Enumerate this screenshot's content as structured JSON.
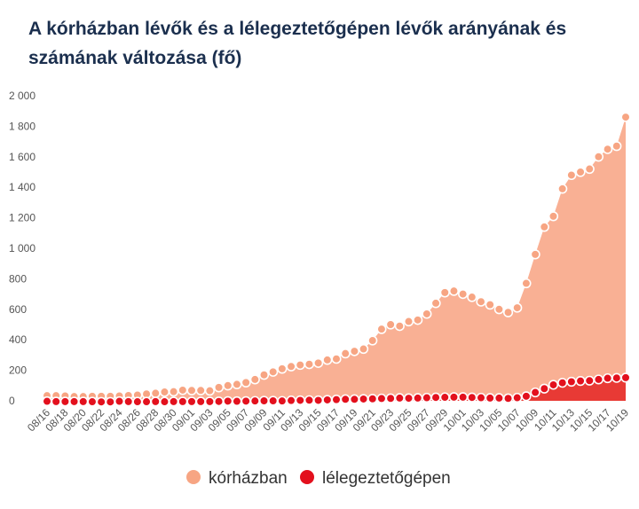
{
  "chart_data": {
    "type": "area",
    "title": "A kórházban lévők és a lélegeztetőgépen lévők arányának és számának változása (fő)",
    "xlabel": "",
    "ylabel": "",
    "ylim": [
      0,
      2000
    ],
    "yticks": [
      "0",
      "200",
      "400",
      "600",
      "800",
      "1 000",
      "1 200",
      "1 400",
      "1 600",
      "1 800",
      "2 000"
    ],
    "grid": false,
    "legend_position": "bottom",
    "dates": [
      "08/16",
      "08/17",
      "08/18",
      "08/19",
      "08/20",
      "08/21",
      "08/22",
      "08/23",
      "08/24",
      "08/25",
      "08/26",
      "08/27",
      "08/28",
      "08/29",
      "08/30",
      "08/31",
      "09/01",
      "09/02",
      "09/03",
      "09/04",
      "09/05",
      "09/06",
      "09/07",
      "09/08",
      "09/09",
      "09/10",
      "09/11",
      "09/12",
      "09/13",
      "09/14",
      "09/15",
      "09/16",
      "09/17",
      "09/18",
      "09/19",
      "09/20",
      "09/21",
      "09/22",
      "09/23",
      "09/24",
      "09/25",
      "09/26",
      "09/27",
      "09/28",
      "09/29",
      "09/30",
      "10/01",
      "10/02",
      "10/03",
      "10/04",
      "10/05",
      "10/06",
      "10/07",
      "10/08",
      "10/09",
      "10/10",
      "10/11",
      "10/12",
      "10/13",
      "10/14",
      "10/15",
      "10/16",
      "10/17",
      "10/18",
      "10/19"
    ],
    "tick_labels": [
      "08/16",
      "08/18",
      "08/20",
      "08/22",
      "08/24",
      "08/26",
      "08/28",
      "08/30",
      "09/01",
      "09/03",
      "09/05",
      "09/07",
      "09/09",
      "09/11",
      "09/13",
      "09/15",
      "09/17",
      "09/19",
      "09/21",
      "09/23",
      "09/25",
      "09/27",
      "09/29",
      "10/01",
      "10/03",
      "10/05",
      "10/07",
      "10/09",
      "10/11",
      "10/13",
      "10/15",
      "10/17",
      "10/19"
    ],
    "series": [
      {
        "name": "kórházban",
        "color": "#f7a583",
        "fill": "#f9b094",
        "values": [
          34,
          34,
          32,
          28,
          28,
          30,
          30,
          30,
          32,
          35,
          38,
          45,
          50,
          58,
          60,
          70,
          68,
          68,
          66,
          88,
          100,
          108,
          120,
          140,
          170,
          190,
          210,
          225,
          235,
          240,
          248,
          268,
          275,
          310,
          325,
          340,
          395,
          470,
          500,
          490,
          520,
          530,
          570,
          640,
          710,
          720,
          700,
          680,
          650,
          630,
          600,
          580,
          610,
          770,
          960,
          1140,
          1210,
          1390,
          1480,
          1500,
          1520,
          1600,
          1650,
          1670,
          1860
        ]
      },
      {
        "name": "lélegeztetőgépen",
        "color": "#e3101d",
        "fill": "#e83a35",
        "values": [
          -3,
          -5,
          -5,
          -5,
          -5,
          -6,
          -7,
          -7,
          -3,
          -5,
          -6,
          -6,
          -5,
          -6,
          -5,
          -5,
          -5,
          -5,
          -5,
          -4,
          -2,
          -3,
          -2,
          -1,
          0,
          0,
          -1,
          2,
          3,
          4,
          3,
          6,
          8,
          10,
          10,
          12,
          13,
          15,
          16,
          18,
          17,
          18,
          20,
          22,
          23,
          24,
          24,
          22,
          20,
          18,
          18,
          16,
          20,
          30,
          55,
          80,
          105,
          118,
          125,
          130,
          132,
          140,
          148,
          150,
          152
        ]
      }
    ]
  }
}
